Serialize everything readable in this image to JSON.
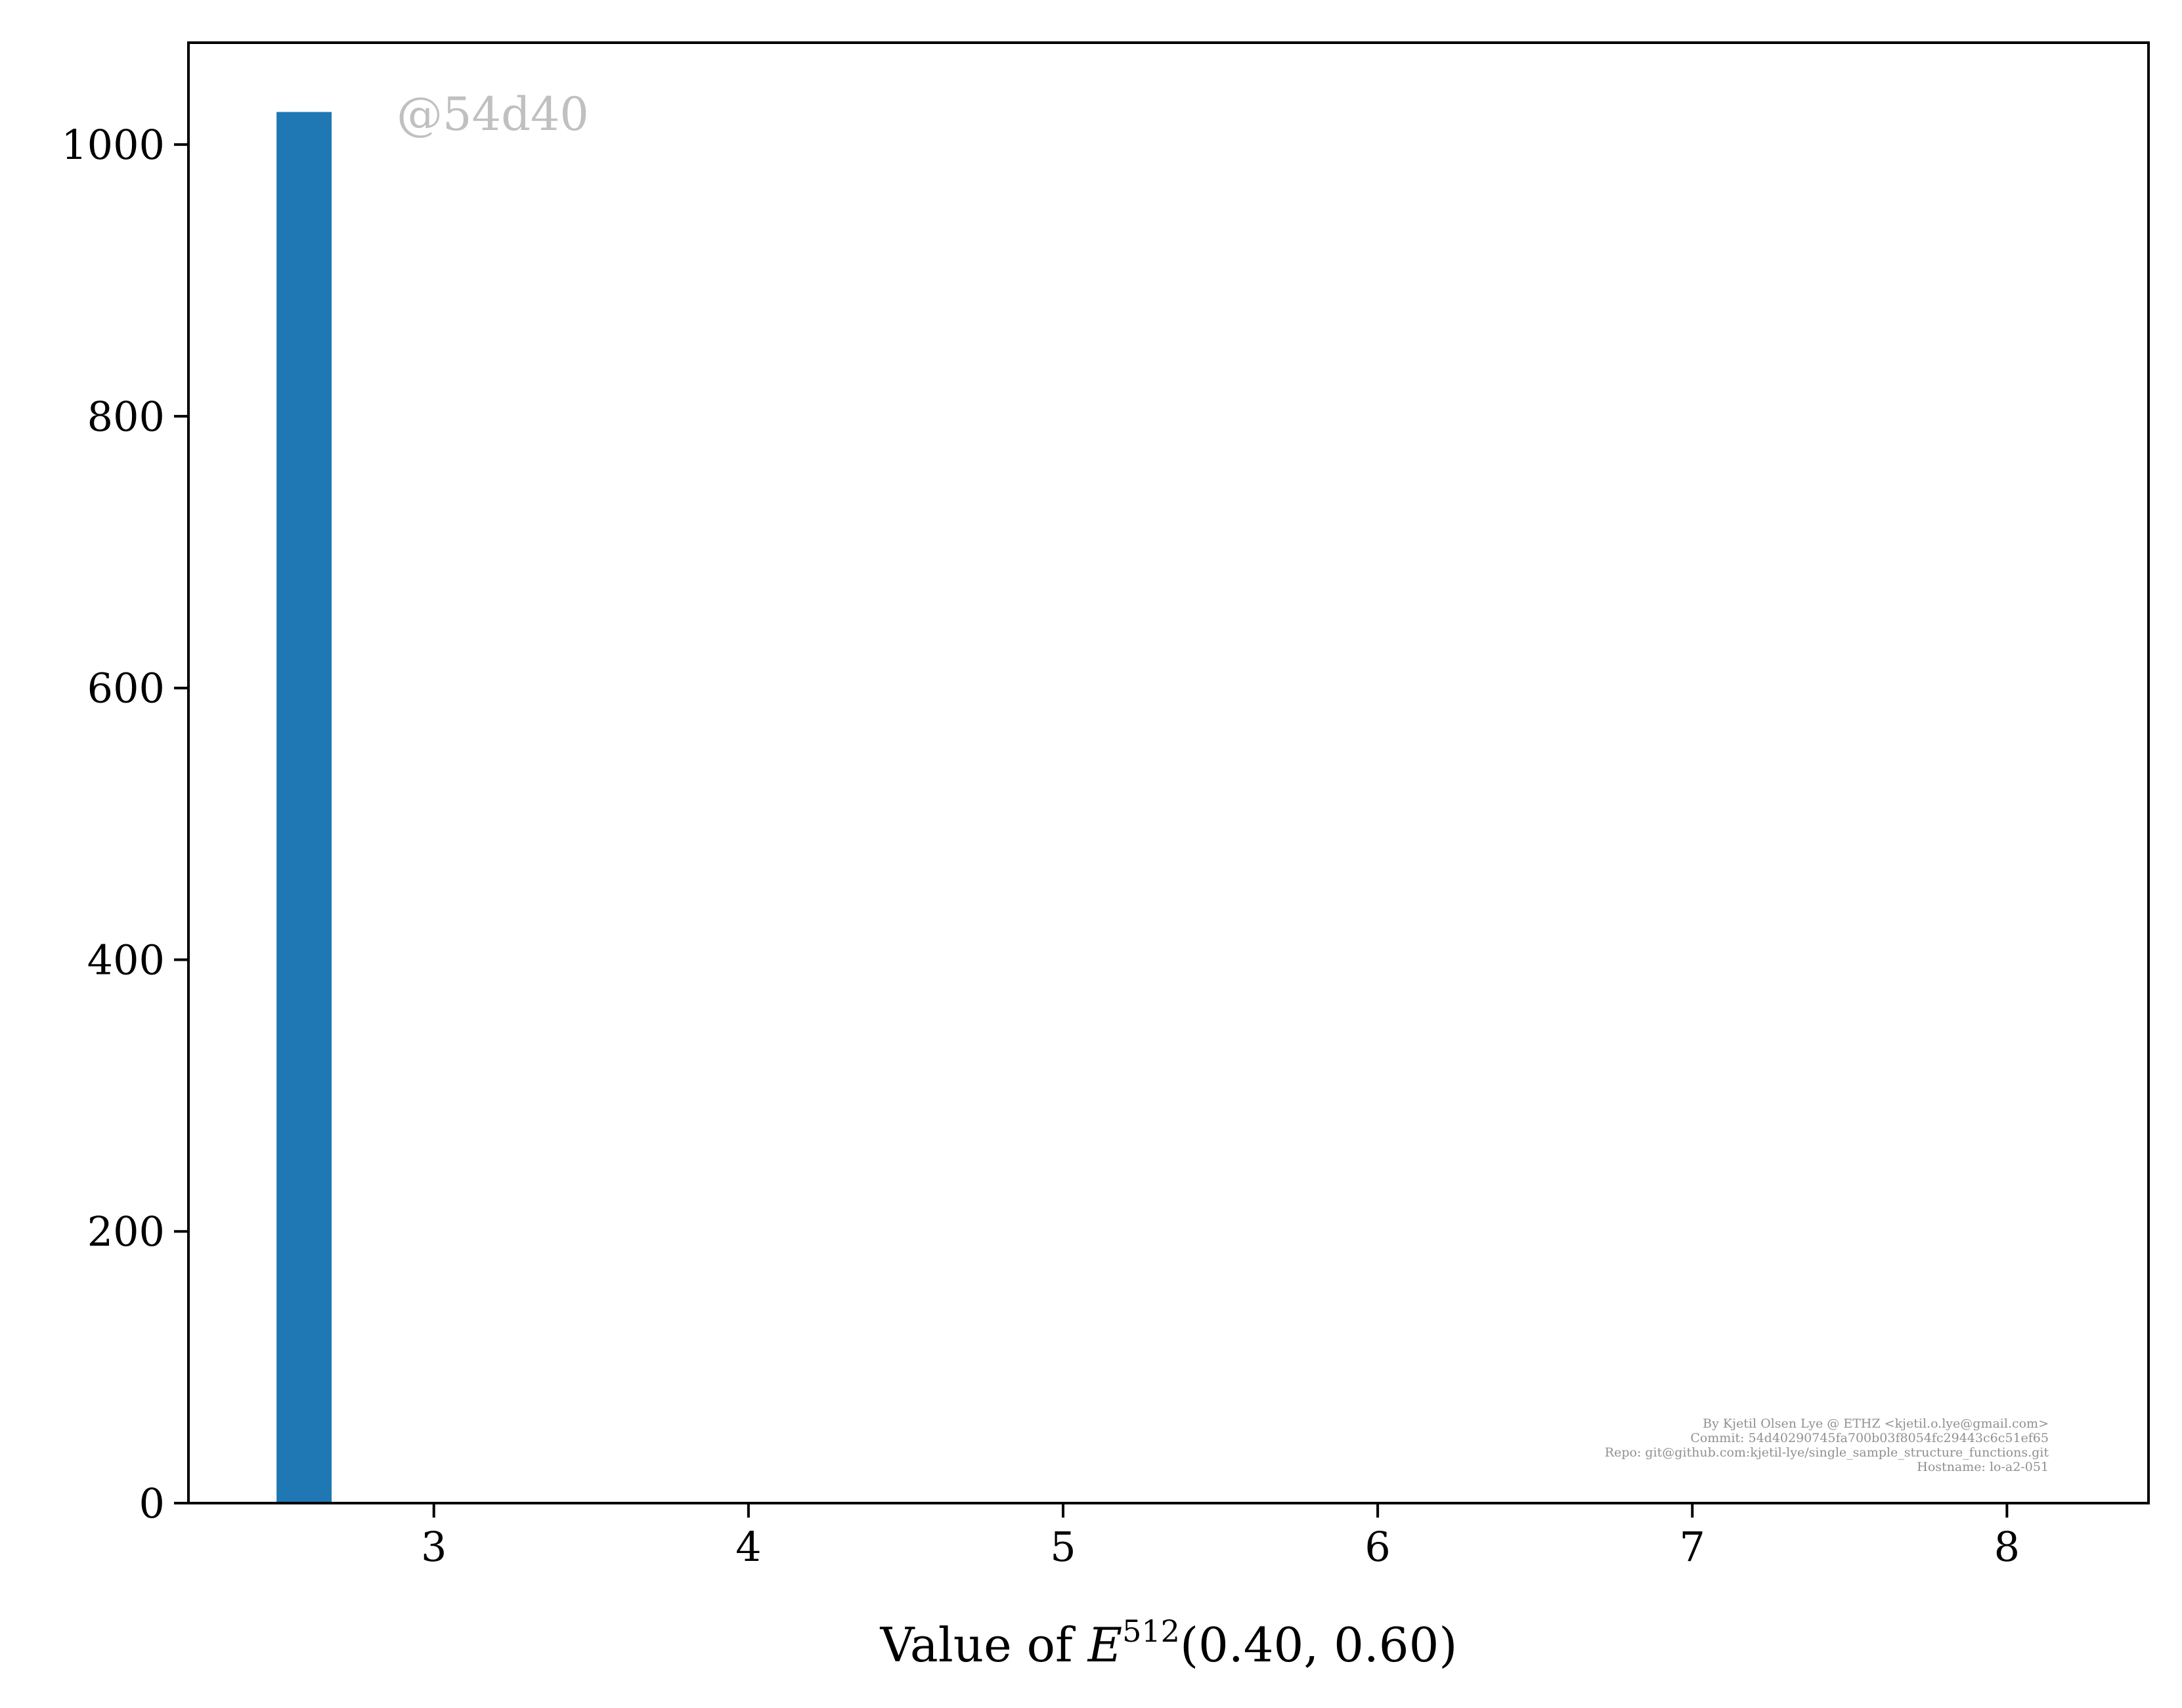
{
  "chart_data": {
    "type": "bar",
    "bins": [
      {
        "x_start": 2.5,
        "x_end": 2.675,
        "count": 1024
      }
    ],
    "x_ticks": [
      3,
      4,
      5,
      6,
      7,
      8
    ],
    "y_ticks": [
      0,
      200,
      400,
      600,
      800,
      1000
    ],
    "xlim": [
      2.22,
      8.45
    ],
    "ylim": [
      0,
      1075
    ],
    "xlabel": {
      "prefix": "Value of ",
      "var": "E",
      "sup": "512",
      "args": "(0.40, 0.60)"
    },
    "ylabel": "",
    "title": "",
    "grid": false,
    "bar_color": "#1f77b4"
  },
  "watermark": "@54d40",
  "credits": [
    "By Kjetil Olsen Lye @ ETHZ <kjetil.o.lye@gmail.com>",
    "Commit: 54d40290745fa700b03f8054fc29443c6c51ef65",
    "Repo: git@github.com:kjetil-lye/single_sample_structure_functions.git",
    "Hostname: lo-a2-051"
  ]
}
